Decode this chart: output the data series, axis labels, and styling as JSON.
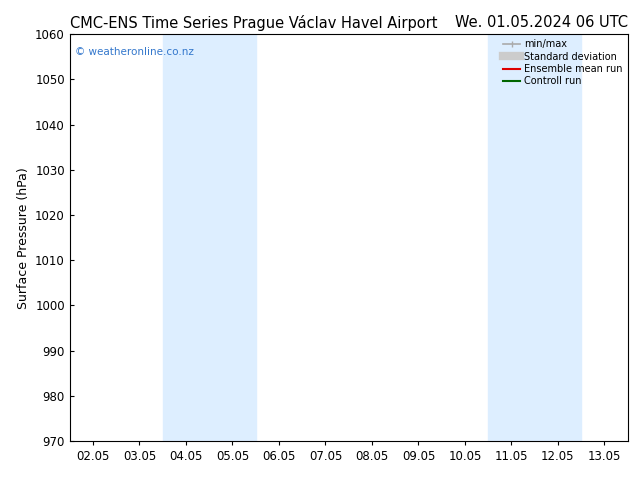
{
  "title_left": "CMC-ENS Time Series Prague Václav Havel Airport",
  "title_right": "We. 01.05.2024 06 UTC",
  "ylabel": "Surface Pressure (hPa)",
  "ylim": [
    970,
    1060
  ],
  "yticks": [
    970,
    980,
    990,
    1000,
    1010,
    1020,
    1030,
    1040,
    1050,
    1060
  ],
  "xtick_labels": [
    "02.05",
    "03.05",
    "04.05",
    "05.05",
    "06.05",
    "07.05",
    "08.05",
    "09.05",
    "10.05",
    "11.05",
    "12.05",
    "13.05"
  ],
  "shaded_regions": [
    {
      "xstart": "04.05",
      "xend": "06.05"
    },
    {
      "xstart": "11.05",
      "xend": "13.05"
    }
  ],
  "shade_color": "#ddeeff",
  "watermark_text": "© weatheronline.co.nz",
  "watermark_color": "#3377cc",
  "legend_entries": [
    {
      "label": "min/max",
      "color": "#aaaaaa",
      "lw": 1.2
    },
    {
      "label": "Standard deviation",
      "color": "#cccccc",
      "lw": 6
    },
    {
      "label": "Ensemble mean run",
      "color": "#dd0000",
      "lw": 1.5
    },
    {
      "label": "Controll run",
      "color": "#006600",
      "lw": 1.5
    }
  ],
  "bg_color": "#ffffff",
  "title_fontsize": 10.5,
  "axis_label_fontsize": 9,
  "tick_fontsize": 8.5
}
